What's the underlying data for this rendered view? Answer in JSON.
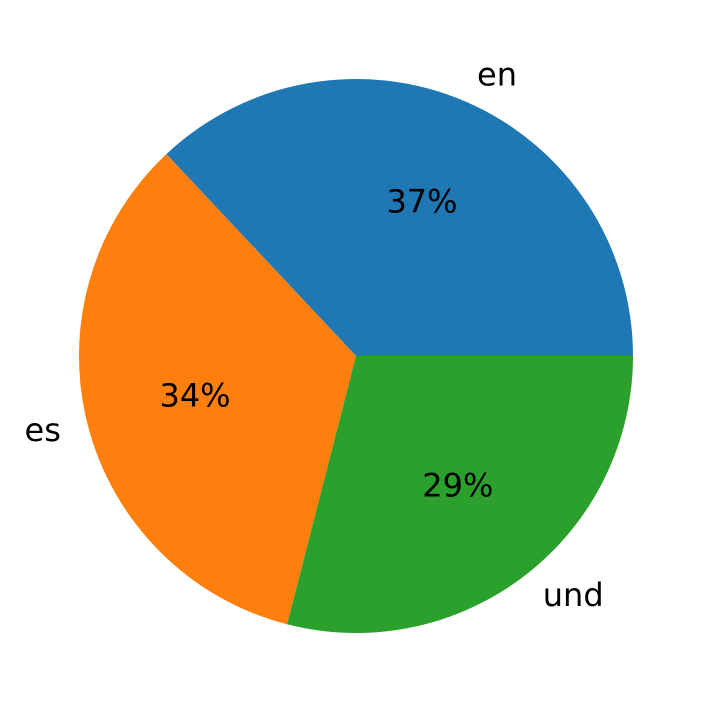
{
  "chart_data": {
    "type": "pie",
    "categories": [
      "en",
      "es",
      "und"
    ],
    "values": [
      37,
      34,
      29
    ],
    "value_labels": [
      "37%",
      "34%",
      "29%"
    ],
    "colors": [
      "#1f77b4",
      "#ff7f0e",
      "#2ca02c"
    ]
  }
}
